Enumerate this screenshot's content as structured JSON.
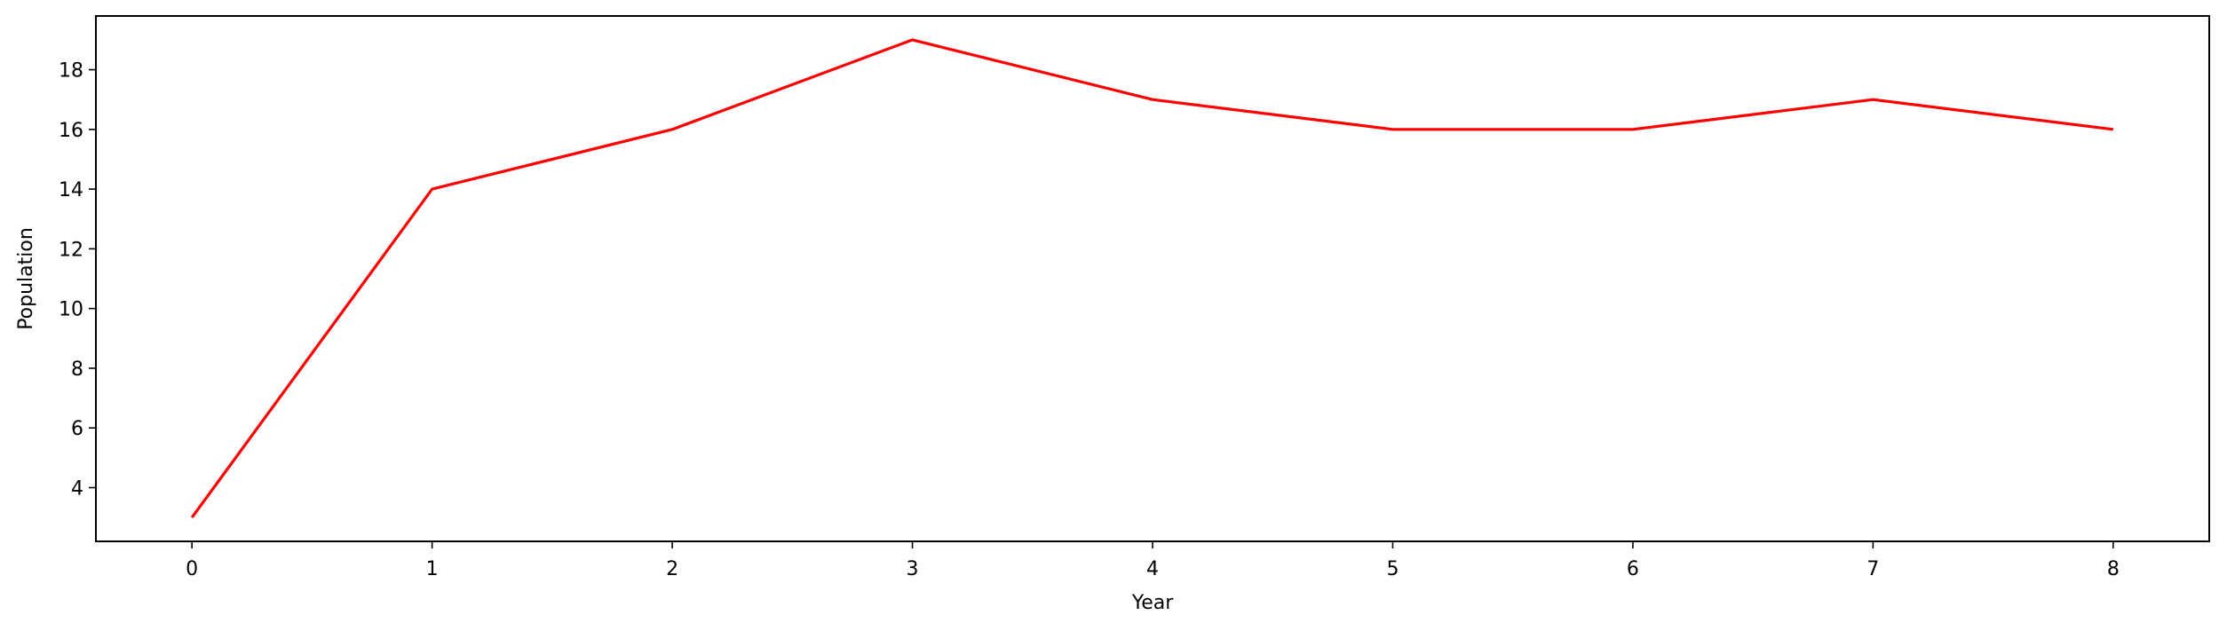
{
  "chart_data": {
    "type": "line",
    "title": "",
    "xlabel": "Year",
    "ylabel": "Population",
    "x": [
      0,
      1,
      2,
      3,
      4,
      5,
      6,
      7,
      8
    ],
    "series": [
      {
        "values": [
          3,
          14,
          16,
          19,
          17,
          16,
          16,
          17,
          16
        ],
        "color": "#ff0000"
      }
    ],
    "xlim": [
      -0.4,
      8.4
    ],
    "ylim": [
      2.2,
      19.8
    ],
    "xticks": [
      0,
      1,
      2,
      3,
      4,
      5,
      6,
      7,
      8
    ],
    "yticks": [
      4,
      6,
      8,
      10,
      12,
      14,
      16,
      18
    ],
    "grid": false,
    "legend": false
  }
}
